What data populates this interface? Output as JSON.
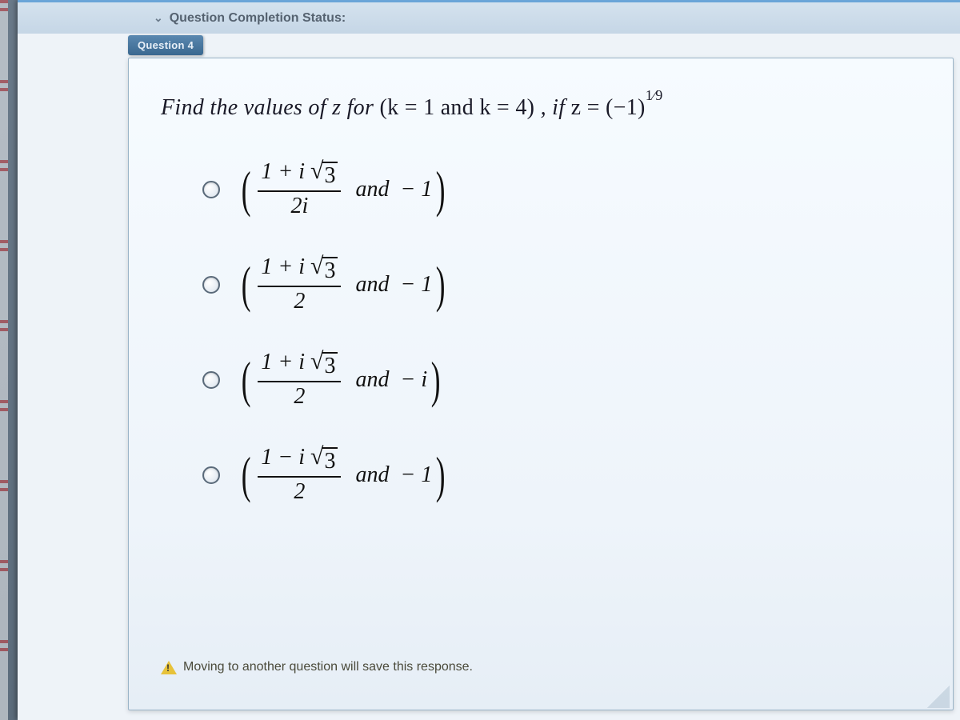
{
  "header": {
    "status_label": "Question Completion Status:"
  },
  "tab": {
    "label": "Question 4"
  },
  "question": {
    "prompt_prefix": "Find the values of z for ",
    "k_part": "(k = 1 and k = 4)",
    "mid": ", if ",
    "z_expr_lhs": "z = (−1)",
    "z_expr_exp": "1⁄9"
  },
  "options": [
    {
      "frac_num_a": "1 + i",
      "frac_num_rad": "3",
      "frac_den": "2i",
      "joiner": "and",
      "second": "− 1"
    },
    {
      "frac_num_a": "1 + i",
      "frac_num_rad": "3",
      "frac_den": "2",
      "joiner": "and",
      "second": "− 1"
    },
    {
      "frac_num_a": "1 + i",
      "frac_num_rad": "3",
      "frac_den": "2",
      "joiner": "and",
      "second": "− i"
    },
    {
      "frac_num_a": "1 − i",
      "frac_num_rad": "3",
      "frac_den": "2",
      "joiner": "and",
      "second": "− 1"
    }
  ],
  "footer": {
    "note": "Moving to another question will save this response."
  },
  "colors": {
    "card_bg": "#f2f8fd",
    "header_bg": "#cddcea",
    "text": "#111111",
    "accent": "#6aa5d8"
  }
}
